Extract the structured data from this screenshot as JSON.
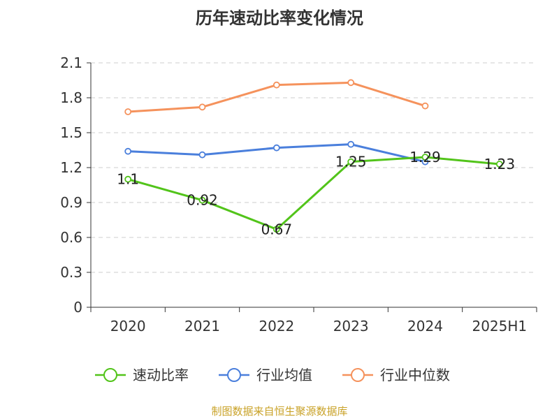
{
  "chart_data": {
    "type": "line",
    "title": "历年速动比率变化情况",
    "categories": [
      "2020",
      "2021",
      "2022",
      "2023",
      "2024",
      "2025H1"
    ],
    "ylim": [
      0,
      2.1
    ],
    "yticks": [
      "0",
      "0.3",
      "0.6",
      "0.9",
      "1.2",
      "1.5",
      "1.8",
      "2.1"
    ],
    "grid": true,
    "legend_position": "bottom",
    "series": [
      {
        "name": "速动比率",
        "color": "#52c41a",
        "values": [
          1.1,
          0.92,
          0.67,
          1.25,
          1.29,
          1.23
        ],
        "labels": [
          "1.1",
          "0.92",
          "0.67",
          "1.25",
          "1.29",
          "1.23"
        ]
      },
      {
        "name": "行业均值",
        "color": "#4a7fdc",
        "values": [
          1.34,
          1.31,
          1.37,
          1.4,
          1.25,
          null
        ]
      },
      {
        "name": "行业中位数",
        "color": "#f5925c",
        "values": [
          1.68,
          1.72,
          1.91,
          1.93,
          1.73,
          null
        ]
      }
    ]
  },
  "source_text": "制图数据来自恒生聚源数据库"
}
